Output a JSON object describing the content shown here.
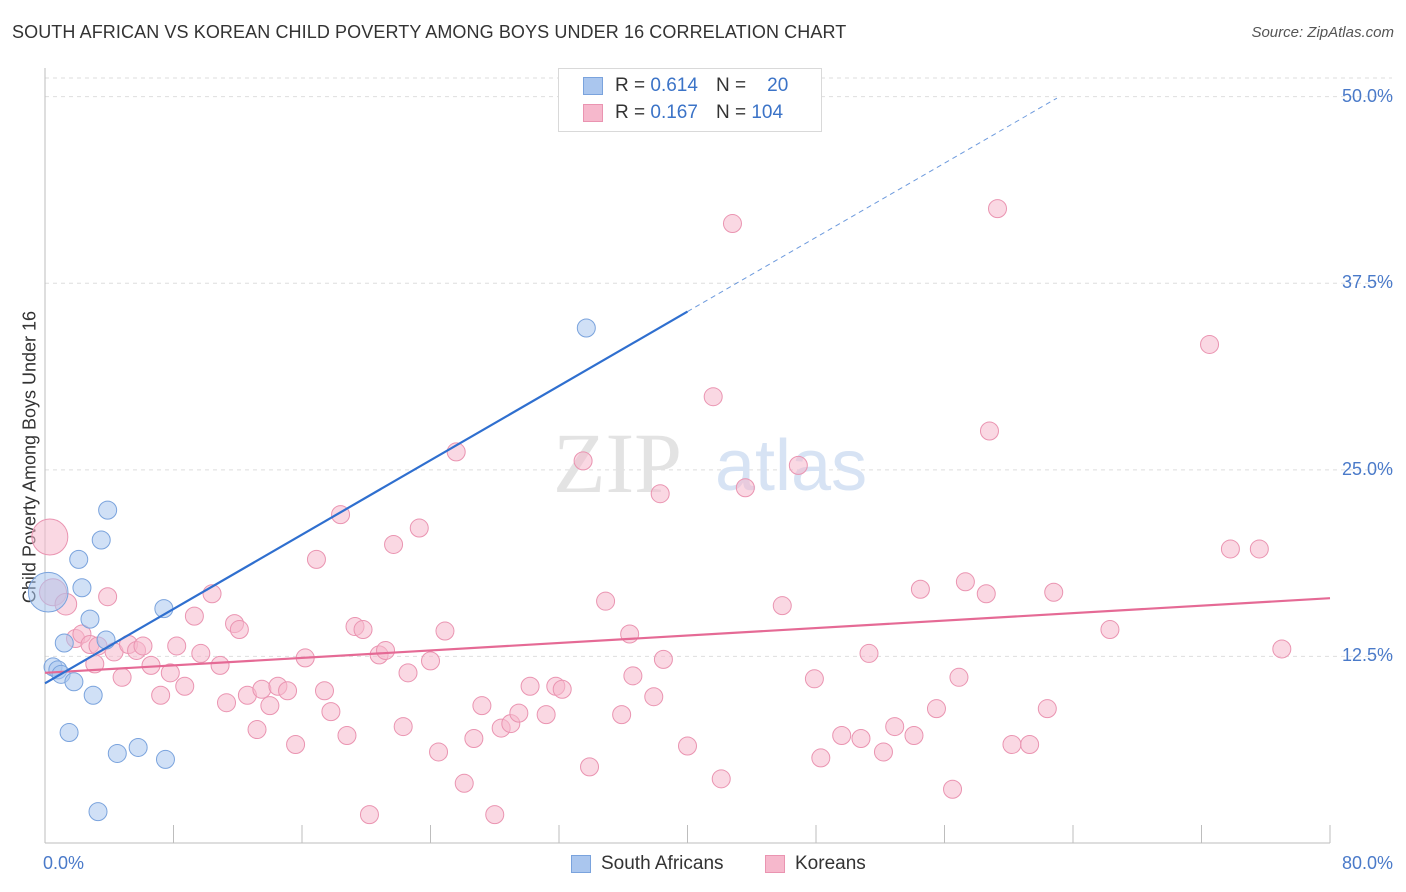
{
  "title": "SOUTH AFRICAN VS KOREAN CHILD POVERTY AMONG BOYS UNDER 16 CORRELATION CHART",
  "source": "Source: ZipAtlas.com",
  "watermark": {
    "part1": "ZIP",
    "part2": "atlas"
  },
  "legend": {
    "r_label": "R =",
    "n_label": "N =",
    "rows": [
      {
        "series": "South Africans",
        "r": "0.614",
        "n": "20"
      },
      {
        "series": "Koreans",
        "r": "0.167",
        "n": "104"
      }
    ]
  },
  "bottom_legend": {
    "south_africans": "South Africans",
    "koreans": "Koreans"
  },
  "colors": {
    "south_africans_fill": "#aac6ee",
    "south_africans_stroke": "#7aa3dd",
    "south_africans_line": "#2f6fcf",
    "koreans_fill": "#f6b8cc",
    "koreans_stroke": "#ea94b1",
    "koreans_line": "#e56a95",
    "tick_text": "#4a7ac9",
    "grid": "#dedede"
  },
  "chart_data": {
    "type": "scatter",
    "title": "SOUTH AFRICAN VS KOREAN CHILD POVERTY AMONG BOYS UNDER 16 CORRELATION CHART",
    "xlabel": "",
    "ylabel": "Child Poverty Among Boys Under 16",
    "xlim": [
      0,
      80
    ],
    "ylim": [
      0,
      50
    ],
    "x_tick_labels": [
      "0.0%",
      "80.0%"
    ],
    "y_ticks": [
      12.5,
      25.0,
      37.5,
      50.0
    ],
    "y_tick_labels": [
      "12.5%",
      "25.0%",
      "37.5%",
      "50.0%"
    ],
    "grid": true,
    "series": [
      {
        "name": "South Africans",
        "r": 0.614,
        "n": 20,
        "trend": {
          "x0": 0,
          "y0": 10.7,
          "x1": 40,
          "y1": 35.6,
          "dashed_to_x": 63,
          "dashed_to_y": 49.9
        },
        "points": [
          [
            0.2,
            16.8,
            2.2
          ],
          [
            0.5,
            11.8,
            1
          ],
          [
            0.8,
            11.6,
            1
          ],
          [
            1.0,
            11.3,
            1
          ],
          [
            1.2,
            13.4,
            1
          ],
          [
            1.5,
            7.4,
            1
          ],
          [
            1.8,
            10.8,
            1
          ],
          [
            2.1,
            19.0,
            1
          ],
          [
            2.3,
            17.1,
            1
          ],
          [
            2.8,
            15.0,
            1
          ],
          [
            3.0,
            9.9,
            1
          ],
          [
            3.3,
            2.1,
            1
          ],
          [
            3.5,
            20.3,
            1
          ],
          [
            3.8,
            13.6,
            1
          ],
          [
            3.9,
            22.3,
            1
          ],
          [
            4.5,
            6.0,
            1
          ],
          [
            5.8,
            6.4,
            1
          ],
          [
            7.4,
            15.7,
            1
          ],
          [
            7.5,
            5.6,
            1
          ],
          [
            33.7,
            34.5,
            1
          ]
        ]
      },
      {
        "name": "Koreans",
        "r": 0.167,
        "n": 104,
        "trend": {
          "x0": 0,
          "y0": 11.4,
          "x1": 80,
          "y1": 16.4
        },
        "points": [
          [
            0.3,
            20.5,
            2.0
          ],
          [
            0.5,
            16.8,
            1.5
          ],
          [
            1.3,
            16.0,
            1.2
          ],
          [
            1.9,
            13.7,
            1
          ],
          [
            2.3,
            14.0,
            1
          ],
          [
            2.8,
            13.3,
            1
          ],
          [
            3.1,
            12.0,
            1
          ],
          [
            3.3,
            13.2,
            1
          ],
          [
            3.9,
            16.5,
            1
          ],
          [
            4.3,
            12.8,
            1
          ],
          [
            4.8,
            11.1,
            1
          ],
          [
            5.2,
            13.3,
            1
          ],
          [
            5.7,
            12.9,
            1
          ],
          [
            6.1,
            13.2,
            1
          ],
          [
            6.6,
            11.9,
            1
          ],
          [
            7.2,
            9.9,
            1
          ],
          [
            7.8,
            11.4,
            1
          ],
          [
            8.2,
            13.2,
            1
          ],
          [
            8.7,
            10.5,
            1
          ],
          [
            9.3,
            15.2,
            1
          ],
          [
            9.7,
            12.7,
            1
          ],
          [
            10.4,
            16.7,
            1
          ],
          [
            10.9,
            11.9,
            1
          ],
          [
            11.3,
            9.4,
            1
          ],
          [
            11.8,
            14.7,
            1
          ],
          [
            12.1,
            14.3,
            1
          ],
          [
            12.6,
            9.9,
            1
          ],
          [
            13.2,
            7.6,
            1
          ],
          [
            13.5,
            10.3,
            1
          ],
          [
            14.0,
            9.2,
            1
          ],
          [
            14.5,
            10.5,
            1
          ],
          [
            15.1,
            10.2,
            1
          ],
          [
            15.6,
            6.6,
            1
          ],
          [
            16.2,
            12.4,
            1
          ],
          [
            16.9,
            19.0,
            1
          ],
          [
            17.4,
            10.2,
            1
          ],
          [
            17.8,
            8.8,
            1
          ],
          [
            18.4,
            22.0,
            1
          ],
          [
            18.8,
            7.2,
            1
          ],
          [
            19.3,
            14.5,
            1
          ],
          [
            19.8,
            14.3,
            1
          ],
          [
            20.2,
            1.9,
            1
          ],
          [
            20.8,
            12.6,
            1
          ],
          [
            21.2,
            12.9,
            1
          ],
          [
            21.7,
            20.0,
            1
          ],
          [
            22.3,
            7.8,
            1
          ],
          [
            22.6,
            11.4,
            1
          ],
          [
            23.3,
            21.1,
            1
          ],
          [
            24.0,
            12.2,
            1
          ],
          [
            24.5,
            6.1,
            1
          ],
          [
            24.9,
            14.2,
            1
          ],
          [
            25.6,
            26.2,
            1
          ],
          [
            26.1,
            4.0,
            1
          ],
          [
            26.7,
            7.0,
            1
          ],
          [
            27.2,
            9.2,
            1
          ],
          [
            28.0,
            1.9,
            1
          ],
          [
            28.4,
            7.7,
            1
          ],
          [
            29.0,
            8.0,
            1
          ],
          [
            29.5,
            8.7,
            1
          ],
          [
            30.2,
            10.5,
            1
          ],
          [
            31.2,
            8.6,
            1
          ],
          [
            31.8,
            10.5,
            1
          ],
          [
            32.2,
            10.3,
            1
          ],
          [
            33.5,
            25.6,
            1
          ],
          [
            33.9,
            5.1,
            1
          ],
          [
            34.9,
            16.2,
            1
          ],
          [
            35.9,
            8.6,
            1
          ],
          [
            36.4,
            14.0,
            1
          ],
          [
            36.6,
            11.2,
            1
          ],
          [
            37.9,
            9.8,
            1
          ],
          [
            38.3,
            23.4,
            1
          ],
          [
            38.5,
            12.3,
            1
          ],
          [
            40.0,
            6.5,
            1
          ],
          [
            41.6,
            29.9,
            1
          ],
          [
            42.1,
            4.3,
            1
          ],
          [
            42.8,
            41.5,
            1
          ],
          [
            43.6,
            23.8,
            1
          ],
          [
            45.9,
            15.9,
            1
          ],
          [
            46.9,
            25.3,
            1
          ],
          [
            47.9,
            11.0,
            1
          ],
          [
            48.3,
            5.7,
            1
          ],
          [
            49.6,
            7.2,
            1
          ],
          [
            50.8,
            7.0,
            1
          ],
          [
            51.3,
            12.7,
            1
          ],
          [
            52.2,
            6.1,
            1
          ],
          [
            52.9,
            7.8,
            1
          ],
          [
            54.1,
            7.2,
            1
          ],
          [
            54.5,
            17.0,
            1
          ],
          [
            55.5,
            9.0,
            1
          ],
          [
            57.3,
            17.5,
            1
          ],
          [
            56.5,
            3.6,
            1
          ],
          [
            56.9,
            11.1,
            1
          ],
          [
            58.6,
            16.7,
            1
          ],
          [
            58.8,
            27.6,
            1
          ],
          [
            59.3,
            42.5,
            1
          ],
          [
            60.2,
            6.6,
            1
          ],
          [
            61.3,
            6.6,
            1
          ],
          [
            62.4,
            9.0,
            1
          ],
          [
            62.8,
            16.8,
            1
          ],
          [
            66.3,
            14.3,
            1
          ],
          [
            72.5,
            33.4,
            1
          ],
          [
            73.8,
            19.7,
            1
          ],
          [
            75.6,
            19.7,
            1
          ],
          [
            77.0,
            13.0,
            1
          ]
        ]
      }
    ]
  }
}
